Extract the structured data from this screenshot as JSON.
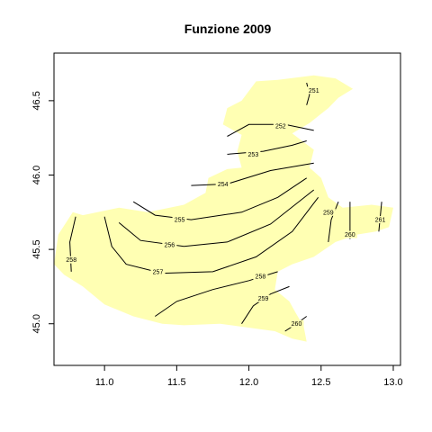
{
  "chart_data": {
    "type": "contour map",
    "title": "Funzione 2009",
    "xlabel": "",
    "ylabel": "",
    "xlim": [
      10.65,
      13.05
    ],
    "ylim": [
      44.72,
      46.82
    ],
    "x_ticks": [
      "11.0",
      "11.5",
      "12.0",
      "12.5",
      "13.0"
    ],
    "y_ticks": [
      "45.0",
      "45.5",
      "46.0",
      "46.5"
    ],
    "fill_color": "#ffffb3",
    "line_color": "#000000",
    "region_outline": [
      [
        11.3,
        45.75
      ],
      [
        11.55,
        45.8
      ],
      [
        11.7,
        45.88
      ],
      [
        11.72,
        45.98
      ],
      [
        11.85,
        46.04
      ],
      [
        11.95,
        46.05
      ],
      [
        11.92,
        46.16
      ],
      [
        11.95,
        46.27
      ],
      [
        11.82,
        46.34
      ],
      [
        11.85,
        46.45
      ],
      [
        11.95,
        46.5
      ],
      [
        12.05,
        46.63
      ],
      [
        12.2,
        46.64
      ],
      [
        12.45,
        46.67
      ],
      [
        12.6,
        46.65
      ],
      [
        12.72,
        46.58
      ],
      [
        12.62,
        46.52
      ],
      [
        12.55,
        46.45
      ],
      [
        12.42,
        46.35
      ],
      [
        12.3,
        46.28
      ],
      [
        12.45,
        46.17
      ],
      [
        12.42,
        46.05
      ],
      [
        12.5,
        45.98
      ],
      [
        12.55,
        45.85
      ],
      [
        12.65,
        45.78
      ],
      [
        12.85,
        45.8
      ],
      [
        13.0,
        45.78
      ],
      [
        12.97,
        45.65
      ],
      [
        12.88,
        45.62
      ],
      [
        12.75,
        45.6
      ],
      [
        12.6,
        45.55
      ],
      [
        12.45,
        45.45
      ],
      [
        12.3,
        45.4
      ],
      [
        12.2,
        45.35
      ],
      [
        12.18,
        45.23
      ],
      [
        12.28,
        45.15
      ],
      [
        12.32,
        45.08
      ],
      [
        12.38,
        44.98
      ],
      [
        12.4,
        44.88
      ],
      [
        12.3,
        44.9
      ],
      [
        12.18,
        44.95
      ],
      [
        11.95,
        44.98
      ],
      [
        11.8,
        45.0
      ],
      [
        11.55,
        44.99
      ],
      [
        11.4,
        45.0
      ],
      [
        11.2,
        45.05
      ],
      [
        11.0,
        45.13
      ],
      [
        10.85,
        45.25
      ],
      [
        10.72,
        45.33
      ],
      [
        10.65,
        45.4
      ],
      [
        10.68,
        45.6
      ],
      [
        10.78,
        45.75
      ],
      [
        10.85,
        45.73
      ],
      [
        11.1,
        45.78
      ]
    ],
    "contours": [
      {
        "level": "251",
        "label_x": 12.45,
        "label_y": 46.57,
        "points": [
          [
            12.4,
            46.62
          ],
          [
            12.42,
            46.54
          ],
          [
            12.4,
            46.47
          ]
        ]
      },
      {
        "level": "252",
        "label_x": 12.22,
        "label_y": 46.33,
        "points": [
          [
            11.85,
            46.26
          ],
          [
            12.0,
            46.34
          ],
          [
            12.25,
            46.34
          ],
          [
            12.45,
            46.3
          ]
        ]
      },
      {
        "level": "253",
        "label_x": 12.03,
        "label_y": 46.14,
        "points": [
          [
            11.85,
            46.14
          ],
          [
            12.1,
            46.16
          ],
          [
            12.3,
            46.2
          ],
          [
            12.4,
            46.23
          ]
        ]
      },
      {
        "level": "254",
        "label_x": 11.82,
        "label_y": 45.94,
        "points": [
          [
            11.6,
            45.93
          ],
          [
            11.85,
            45.94
          ],
          [
            12.15,
            46.03
          ],
          [
            12.45,
            46.08
          ]
        ]
      },
      {
        "level": "255",
        "label_x": 11.52,
        "label_y": 45.7,
        "points": [
          [
            11.2,
            45.82
          ],
          [
            11.35,
            45.73
          ],
          [
            11.6,
            45.7
          ],
          [
            11.95,
            45.75
          ],
          [
            12.2,
            45.85
          ],
          [
            12.4,
            45.98
          ]
        ]
      },
      {
        "level": "256",
        "label_x": 11.45,
        "label_y": 45.53,
        "points": [
          [
            11.1,
            45.68
          ],
          [
            11.25,
            45.56
          ],
          [
            11.55,
            45.52
          ],
          [
            11.85,
            45.55
          ],
          [
            12.15,
            45.67
          ],
          [
            12.45,
            45.9
          ]
        ]
      },
      {
        "level": "257",
        "label_x": 11.37,
        "label_y": 45.35,
        "points": [
          [
            11.0,
            45.72
          ],
          [
            11.05,
            45.52
          ],
          [
            11.15,
            45.4
          ],
          [
            11.4,
            45.34
          ],
          [
            11.75,
            45.35
          ],
          [
            12.05,
            45.45
          ],
          [
            12.3,
            45.62
          ],
          [
            12.48,
            45.85
          ]
        ]
      },
      {
        "level": "258",
        "label_x": 12.08,
        "label_y": 45.32,
        "points": [
          [
            11.35,
            45.05
          ],
          [
            11.5,
            45.15
          ],
          [
            11.75,
            45.23
          ],
          [
            12.0,
            45.29
          ],
          [
            12.2,
            45.35
          ]
        ]
      },
      {
        "level": "259",
        "label_x": 12.1,
        "label_y": 45.17,
        "points": [
          [
            11.95,
            45.0
          ],
          [
            12.03,
            45.12
          ],
          [
            12.15,
            45.2
          ],
          [
            12.28,
            45.25
          ]
        ]
      },
      {
        "level": "260",
        "label_x": 12.33,
        "label_y": 45.0,
        "points": [
          [
            12.25,
            44.95
          ],
          [
            12.33,
            45.0
          ],
          [
            12.4,
            45.05
          ]
        ]
      },
      {
        "level": "258",
        "label_x": 10.77,
        "label_y": 45.43,
        "points": [
          [
            10.8,
            45.72
          ],
          [
            10.76,
            45.55
          ],
          [
            10.77,
            45.35
          ]
        ]
      },
      {
        "level": "259",
        "label_x": 12.55,
        "label_y": 45.75,
        "points": [
          [
            12.62,
            45.82
          ],
          [
            12.57,
            45.7
          ],
          [
            12.55,
            45.55
          ]
        ]
      },
      {
        "level": "260",
        "label_x": 12.7,
        "label_y": 45.6,
        "points": [
          [
            12.7,
            45.82
          ],
          [
            12.7,
            45.57
          ]
        ]
      },
      {
        "level": "261",
        "label_x": 12.91,
        "label_y": 45.7,
        "points": [
          [
            12.92,
            45.82
          ],
          [
            12.9,
            45.62
          ]
        ]
      }
    ]
  }
}
